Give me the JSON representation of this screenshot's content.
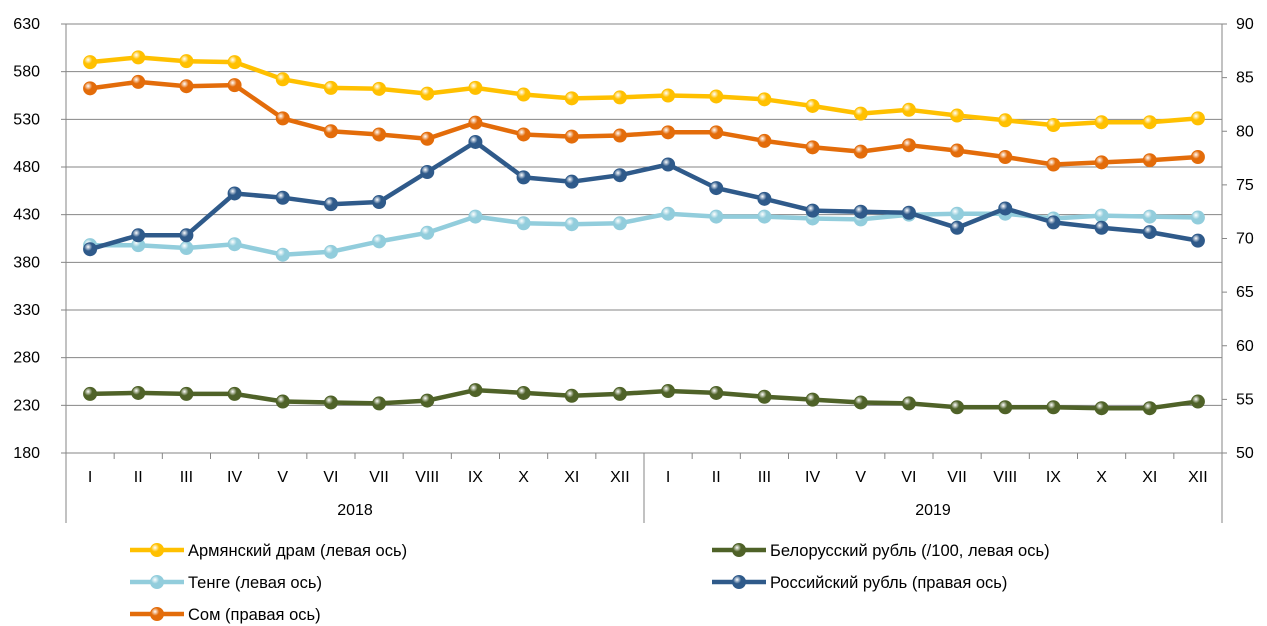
{
  "chart_data": {
    "type": "line",
    "categories": [
      "I",
      "II",
      "III",
      "IV",
      "V",
      "VI",
      "VII",
      "VIII",
      "IX",
      "X",
      "XI",
      "XII",
      "I",
      "II",
      "III",
      "IV",
      "V",
      "VI",
      "VII",
      "VIII",
      "IX",
      "X",
      "XI",
      "XII"
    ],
    "year_labels": [
      "2018",
      "2019"
    ],
    "left_axis": {
      "min": 180,
      "max": 630,
      "ticks": [
        180,
        230,
        280,
        330,
        380,
        430,
        480,
        530,
        580,
        630
      ]
    },
    "right_axis": {
      "min": 50,
      "max": 90,
      "ticks": [
        50,
        55,
        60,
        65,
        70,
        75,
        80,
        85,
        90
      ]
    },
    "grid": true,
    "legend_position": "bottom",
    "series": [
      {
        "name": "Армянский драм (левая ось)",
        "axis": "left",
        "color": "#FFC000",
        "values": [
          590,
          595,
          591,
          590,
          572,
          563,
          562,
          557,
          563,
          556,
          552,
          553,
          555,
          554,
          551,
          544,
          536,
          540,
          534,
          529,
          524,
          527,
          527,
          531
        ]
      },
      {
        "name": "Белорусский рубль (/100, левая ось)",
        "axis": "left",
        "color": "#4F6228",
        "values": [
          242,
          243,
          242,
          242,
          234,
          233,
          232,
          235,
          246,
          243,
          240,
          242,
          245,
          243,
          239,
          236,
          233,
          232,
          228,
          228,
          228,
          227,
          227,
          234
        ]
      },
      {
        "name": "Тенге (левая ось)",
        "axis": "left",
        "color": "#92CDDC",
        "values": [
          398,
          398,
          395,
          399,
          388,
          391,
          402,
          411,
          428,
          421,
          420,
          421,
          431,
          428,
          428,
          426,
          425,
          430,
          431,
          431,
          426,
          429,
          428,
          427
        ]
      },
      {
        "name": "Российский рубль (правая ось)",
        "axis": "right",
        "color": "#2F5A8A",
        "values": [
          69.0,
          70.3,
          70.3,
          74.2,
          73.8,
          73.2,
          73.4,
          76.2,
          79.0,
          75.7,
          75.3,
          75.9,
          76.9,
          74.7,
          73.7,
          72.6,
          72.5,
          72.4,
          71.0,
          72.8,
          71.5,
          71.0,
          70.6,
          69.8
        ]
      },
      {
        "name": "Сом (правая ось)",
        "axis": "right",
        "color": "#E36C0A",
        "values": [
          84.0,
          84.6,
          84.2,
          84.3,
          81.2,
          80.0,
          79.7,
          79.3,
          80.8,
          79.7,
          79.5,
          79.6,
          79.9,
          79.9,
          79.1,
          78.5,
          78.1,
          78.7,
          78.2,
          77.6,
          76.9,
          77.1,
          77.3,
          77.6
        ]
      }
    ]
  }
}
